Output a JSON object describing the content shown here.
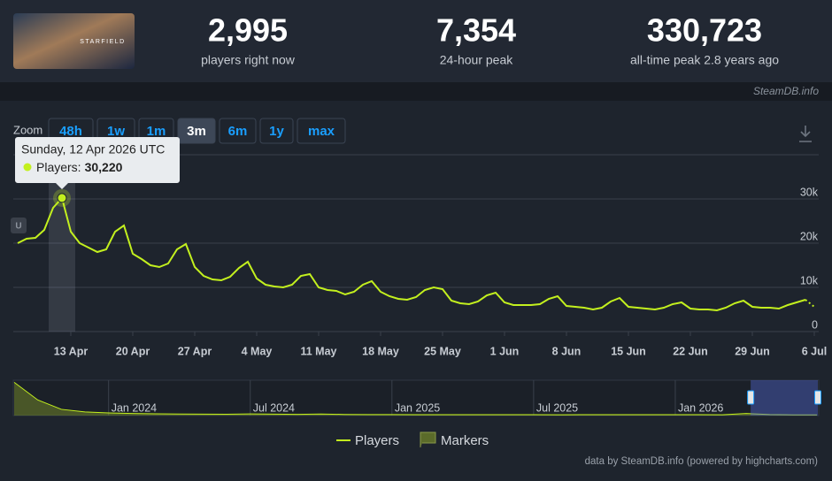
{
  "game": {
    "image_text": "STARFIELD"
  },
  "stats": [
    {
      "value": "2,995",
      "label": "players right now"
    },
    {
      "value": "7,354",
      "label": "24-hour peak"
    },
    {
      "value": "330,723",
      "label": "all-time peak 2.8 years ago"
    }
  ],
  "source": "SteamDB.info",
  "zoom": {
    "label": "Zoom",
    "buttons": [
      "48h",
      "1w",
      "1m",
      "3m",
      "6m",
      "1y",
      "max"
    ],
    "selected": 3
  },
  "chart_data": {
    "type": "line",
    "x": [
      "2026-04-07",
      "2026-04-08",
      "2026-04-09",
      "2026-04-10",
      "2026-04-11",
      "2026-04-12",
      "2026-04-13",
      "2026-04-14",
      "2026-04-15",
      "2026-04-16",
      "2026-04-17",
      "2026-04-18",
      "2026-04-19",
      "2026-04-20",
      "2026-04-21",
      "2026-04-22",
      "2026-04-23",
      "2026-04-24",
      "2026-04-25",
      "2026-04-26",
      "2026-04-27",
      "2026-04-28",
      "2026-04-29",
      "2026-04-30",
      "2026-05-01",
      "2026-05-02",
      "2026-05-03",
      "2026-05-04",
      "2026-05-05",
      "2026-05-06",
      "2026-05-07",
      "2026-05-08",
      "2026-05-09",
      "2026-05-10",
      "2026-05-11",
      "2026-05-12",
      "2026-05-13",
      "2026-05-14",
      "2026-05-15",
      "2026-05-16",
      "2026-05-17",
      "2026-05-18",
      "2026-05-19",
      "2026-05-20",
      "2026-05-21",
      "2026-05-22",
      "2026-05-23",
      "2026-05-24",
      "2026-05-25",
      "2026-05-26",
      "2026-05-27",
      "2026-05-28",
      "2026-05-29",
      "2026-05-30",
      "2026-05-31",
      "2026-06-01",
      "2026-06-02",
      "2026-06-03",
      "2026-06-04",
      "2026-06-05",
      "2026-06-06",
      "2026-06-07",
      "2026-06-08",
      "2026-06-09",
      "2026-06-10",
      "2026-06-11",
      "2026-06-12",
      "2026-06-13",
      "2026-06-14",
      "2026-06-15",
      "2026-06-16",
      "2026-06-17",
      "2026-06-18",
      "2026-06-19",
      "2026-06-20",
      "2026-06-21",
      "2026-06-22",
      "2026-06-23",
      "2026-06-24",
      "2026-06-25",
      "2026-06-26",
      "2026-06-27",
      "2026-06-28",
      "2026-06-29",
      "2026-06-30",
      "2026-07-01",
      "2026-07-02",
      "2026-07-03",
      "2026-07-04",
      "2026-07-05",
      "2026-07-06"
    ],
    "series": [
      {
        "name": "Players",
        "color": "#c3f01e",
        "values": [
          20000,
          21000,
          21200,
          23000,
          28000,
          30220,
          22600,
          20000,
          19000,
          18000,
          18600,
          22600,
          24000,
          17600,
          16400,
          15000,
          14600,
          15400,
          18600,
          19800,
          14600,
          12600,
          11800,
          11600,
          12400,
          14400,
          15800,
          12000,
          10600,
          10200,
          10000,
          10600,
          12600,
          13000,
          10000,
          9400,
          9200,
          8400,
          9000,
          10600,
          11400,
          9000,
          8000,
          7400,
          7200,
          7800,
          9400,
          10000,
          9600,
          7000,
          6400,
          6200,
          6800,
          8200,
          8800,
          6600,
          6000,
          6000,
          6000,
          6200,
          7400,
          8000,
          5800,
          5600,
          5400,
          5000,
          5400,
          6800,
          7600,
          5600,
          5400,
          5200,
          5000,
          5400,
          6200,
          6600,
          5200,
          5000,
          5000,
          4800,
          5400,
          6400,
          7000,
          5600,
          5400,
          5400,
          5200,
          6000,
          6600,
          7200,
          5600
        ]
      }
    ],
    "last_point_partial": true,
    "xlim": [
      "2026-04-07",
      "2026-07-06"
    ],
    "xticks": [
      {
        "value": "2026-04-13",
        "label": "13 Apr"
      },
      {
        "value": "2026-04-20",
        "label": "20 Apr"
      },
      {
        "value": "2026-04-27",
        "label": "27 Apr"
      },
      {
        "value": "2026-05-04",
        "label": "4 May"
      },
      {
        "value": "2026-05-11",
        "label": "11 May"
      },
      {
        "value": "2026-05-18",
        "label": "18 May"
      },
      {
        "value": "2026-05-25",
        "label": "25 May"
      },
      {
        "value": "2026-06-01",
        "label": "1 Jun"
      },
      {
        "value": "2026-06-08",
        "label": "8 Jun"
      },
      {
        "value": "2026-06-15",
        "label": "15 Jun"
      },
      {
        "value": "2026-06-22",
        "label": "22 Jun"
      },
      {
        "value": "2026-06-29",
        "label": "29 Jun"
      },
      {
        "value": "2026-07-06",
        "label": "6 Jul"
      }
    ],
    "ylim": [
      0,
      40000
    ],
    "yticks": [
      0,
      {
        "value": 10000,
        "label": "10k"
      },
      {
        "value": 20000,
        "label": "20k"
      },
      {
        "value": 30000,
        "label": "30k"
      }
    ],
    "grid": true,
    "markers": {
      "name": "Markers",
      "color": "#5b6b2a",
      "items": [
        {
          "x": "2026-04-07",
          "label": "U"
        }
      ]
    },
    "tooltip": {
      "title": "Sunday, 12 Apr 2026 UTC",
      "series": "Players:",
      "value": "30,220"
    },
    "navigator": {
      "x": [
        "2023-09",
        "2023-10",
        "2023-11",
        "2023-12",
        "2024-01",
        "2024-02",
        "2024-03",
        "2024-04",
        "2024-05",
        "2024-06",
        "2024-07",
        "2024-08",
        "2024-09",
        "2024-10",
        "2024-11",
        "2024-12",
        "2025-01",
        "2025-02",
        "2025-03",
        "2025-04",
        "2025-05",
        "2025-06",
        "2025-07",
        "2025-08",
        "2025-09",
        "2025-10",
        "2025-11",
        "2025-12",
        "2026-01",
        "2026-02",
        "2026-03",
        "2026-04",
        "2026-05",
        "2026-06",
        "2026-07"
      ],
      "values": [
        320000,
        150000,
        60000,
        35000,
        25000,
        20000,
        17000,
        15000,
        14000,
        13000,
        16000,
        14000,
        12000,
        15000,
        11000,
        10000,
        10000,
        9000,
        9000,
        8500,
        8500,
        8000,
        8000,
        7500,
        8000,
        9000,
        8000,
        8000,
        9000,
        8000,
        7500,
        20000,
        10000,
        6500,
        6000
      ],
      "ylim": [
        0,
        340000
      ],
      "xticks": [
        {
          "value": "2024-01",
          "label": "Jan 2024"
        },
        {
          "value": "2024-07",
          "label": "Jul 2024"
        },
        {
          "value": "2025-01",
          "label": "Jan 2025"
        },
        {
          "value": "2025-07",
          "label": "Jul 2025"
        },
        {
          "value": "2026-01",
          "label": "Jan 2026"
        }
      ]
    }
  },
  "credits": "data by SteamDB.info (powered by highcharts.com)"
}
